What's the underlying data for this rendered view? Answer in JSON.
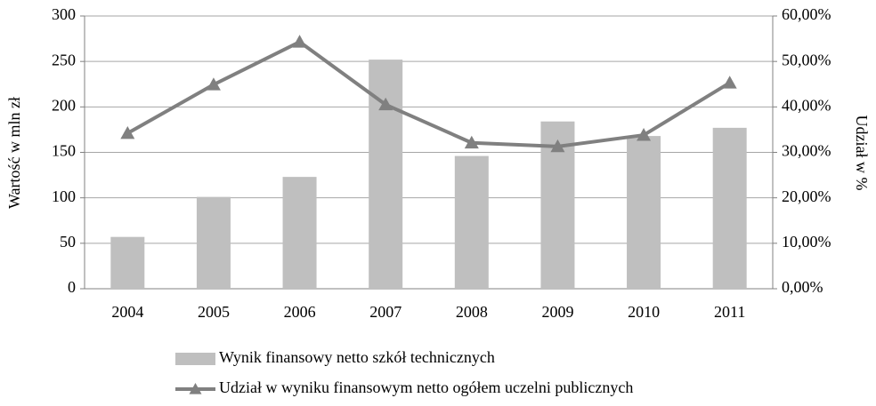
{
  "chart_data": {
    "type": "bar_line",
    "categories": [
      "2004",
      "2005",
      "2006",
      "2007",
      "2008",
      "2009",
      "2010",
      "2011"
    ],
    "series": [
      {
        "name": "Wynik finansowy netto szkół technicznych",
        "type": "bar",
        "color": "#bfbfbf",
        "axis": "y",
        "values": [
          57,
          101,
          123,
          252,
          146,
          184,
          168,
          177
        ]
      },
      {
        "name": "Udział w wyniku finansowym netto ogółem uczelni publicznych",
        "type": "line",
        "color": "#808080",
        "axis": "y2",
        "values": [
          34.2,
          44.9,
          54.3,
          40.5,
          32.1,
          31.3,
          33.8,
          45.3
        ]
      }
    ],
    "ylabel": "Wartość w mln zł",
    "y2label": "Udział w %",
    "ylim": [
      0,
      300
    ],
    "yticks": [
      0,
      50,
      100,
      150,
      200,
      250,
      300
    ],
    "y2lim": [
      0,
      60
    ],
    "y2ticks": [
      {
        "value": 0,
        "label": "0,00%"
      },
      {
        "value": 10,
        "label": "10,00%"
      },
      {
        "value": 20,
        "label": "20,00%"
      },
      {
        "value": 30,
        "label": "30,00%"
      },
      {
        "value": 40,
        "label": "40,00%"
      },
      {
        "value": 50,
        "label": "50,00%"
      },
      {
        "value": 60,
        "label": "60,00%"
      }
    ],
    "grid": true,
    "legend": "bottom"
  }
}
